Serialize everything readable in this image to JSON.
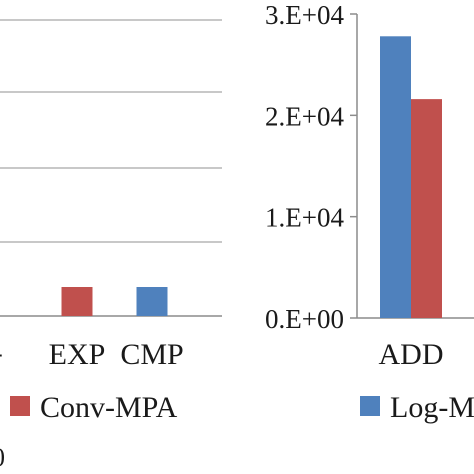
{
  "chart_data": [
    {
      "type": "bar",
      "title": "",
      "note": "left panel, cropped; y axis not visible",
      "categories": [
        "EXP",
        "CMP"
      ],
      "series": [
        {
          "name": "Conv-MPA",
          "color": "#c0504d",
          "values": [
            null,
            null
          ]
        },
        {
          "name": "Log-MPA",
          "color": "#4f81bd",
          "values": [
            null,
            null
          ]
        }
      ],
      "bars_shown": [
        {
          "category": "EXP",
          "series": "Conv-MPA",
          "relative_height": 0.1
        },
        {
          "category": "CMP",
          "series": "Log-MPA",
          "relative_height": 0.1
        }
      ],
      "grid": true,
      "left_edge_labels": [
        "-",
        "0"
      ]
    },
    {
      "type": "bar",
      "title": "",
      "xlabel": "",
      "ylabel": "",
      "categories": [
        "ADD"
      ],
      "yticks": [
        "0.E+00",
        "1.E+04",
        "2.E+04",
        "3.E+04"
      ],
      "ylim": [
        0,
        30000
      ],
      "series": [
        {
          "name": "Log-MPA",
          "color": "#4f81bd",
          "values": [
            27800
          ]
        },
        {
          "name": "Conv-MPA",
          "color": "#c0504d",
          "values": [
            21600
          ]
        }
      ],
      "grid": false
    }
  ],
  "legend": {
    "items": [
      {
        "name": "Conv-MPA",
        "color": "#c0504d"
      },
      {
        "name": "Log-M",
        "color": "#4f81bd"
      }
    ]
  }
}
